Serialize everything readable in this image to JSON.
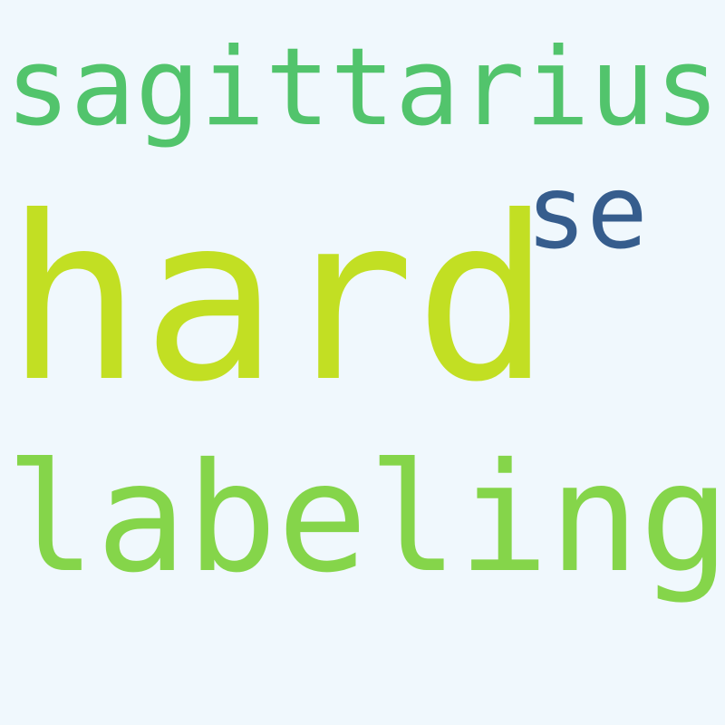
{
  "background": "#f0f8fd",
  "words": [
    {
      "key": "sagittarius",
      "text": "sagittarius",
      "color": "#52c46c"
    },
    {
      "key": "se",
      "text": "se",
      "color": "#365d8d"
    },
    {
      "key": "hard",
      "text": "hard",
      "color": "#c2df23"
    },
    {
      "key": "labeling",
      "text": "labeling",
      "color": "#85d54a"
    }
  ]
}
